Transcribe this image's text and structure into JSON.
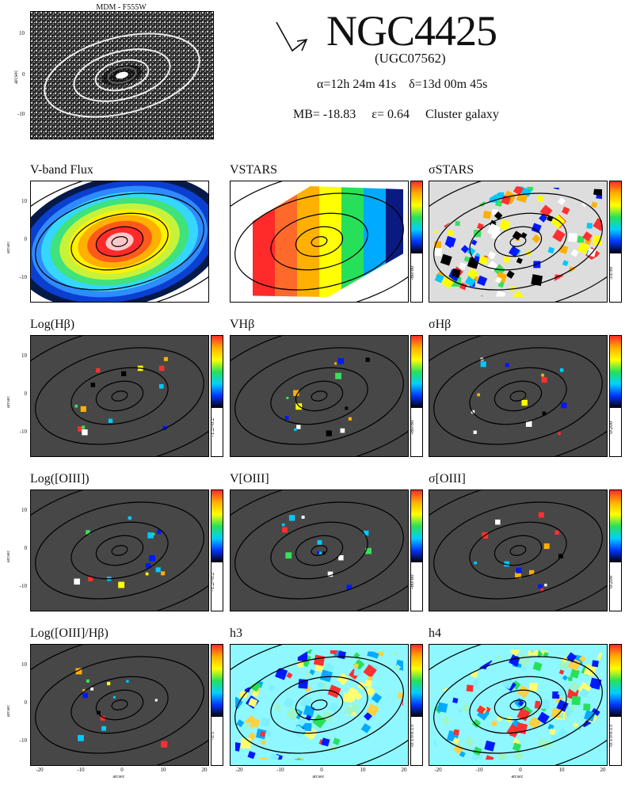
{
  "header": {
    "image_caption": "MDM - F555W",
    "image_ylabel": "arcsec",
    "image_yticks": [
      "10",
      "0",
      "-10"
    ],
    "title": "NGC4425",
    "alt_name": "(UGC07562)",
    "ra": "α=12h 24m 41s",
    "dec": "δ=13d 00m 45s",
    "mb": "MB= -18.83",
    "ellipticity": "ε= 0.64",
    "environment": "Cluster galaxy"
  },
  "axes": {
    "ylabel": "arcsec",
    "xlabel": "arcsec",
    "yticks": [
      "10",
      "0",
      "-10"
    ],
    "xticks": [
      "-20",
      "-10",
      "0",
      "10",
      "20"
    ]
  },
  "panels": [
    {
      "title": "V-band Flux",
      "kind": "flux",
      "range": ""
    },
    {
      "title": "VSTARS",
      "kind": "vel",
      "range": "-80/80"
    },
    {
      "title": "σSTARS",
      "kind": "sigma",
      "range": "35/90"
    },
    {
      "title": "Log(Hβ)",
      "kind": "emission",
      "range": "-1.2/-0.2"
    },
    {
      "title": "VHβ",
      "kind": "emission",
      "range": "-80/80"
    },
    {
      "title": "σHβ",
      "kind": "emission",
      "range": "0/200"
    },
    {
      "title": "Log([OIII])",
      "kind": "emission",
      "range": "-1.2/-0.2"
    },
    {
      "title": "V[OIII]",
      "kind": "emission",
      "range": "-80/80"
    },
    {
      "title": "σ[OIII]",
      "kind": "emission",
      "range": "0/200"
    },
    {
      "title": "Log([OIII]/Hβ)",
      "kind": "emission",
      "range": "-1/1"
    },
    {
      "title": "h3",
      "kind": "h3",
      "range": "-0.15/0.15"
    },
    {
      "title": "h4",
      "kind": "h4",
      "range": "-0.15/0.15"
    }
  ],
  "colors": {
    "panel_bg": "#474747",
    "contour": "#000000",
    "hdr_bg": "#1d1d1d"
  }
}
